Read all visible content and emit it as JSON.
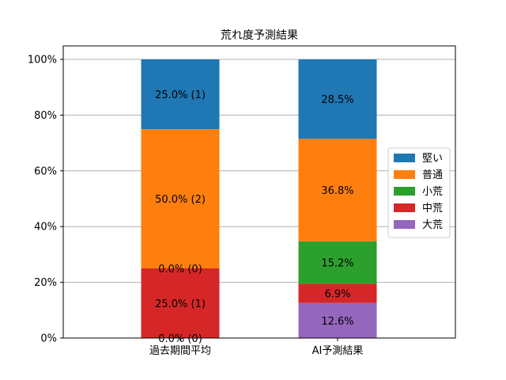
{
  "chart_data": {
    "type": "bar",
    "stacked": true,
    "title": "荒れ度予測結果",
    "xlabel": "",
    "ylabel": "",
    "categories": [
      "過去期間平均",
      "AI予測結果"
    ],
    "ylim": [
      0,
      100
    ],
    "yticks": [
      "0%",
      "20%",
      "40%",
      "60%",
      "80%",
      "100%"
    ],
    "grid": "horizontal",
    "legend_position": "right",
    "series": [
      {
        "name": "大荒",
        "color": "#9467bd",
        "values": [
          0.0,
          12.6
        ],
        "labels": [
          "0.0% (0)",
          "12.6%"
        ]
      },
      {
        "name": "中荒",
        "color": "#d62728",
        "values": [
          25.0,
          6.9
        ],
        "labels": [
          "25.0% (1)",
          "6.9%"
        ]
      },
      {
        "name": "小荒",
        "color": "#2ca02c",
        "values": [
          0.0,
          15.2
        ],
        "labels": [
          "0.0% (0)",
          "15.2%"
        ]
      },
      {
        "name": "普通",
        "color": "#ff7f0e",
        "values": [
          50.0,
          36.8
        ],
        "labels": [
          "50.0% (2)",
          "36.8%"
        ]
      },
      {
        "name": "堅い",
        "color": "#1f77b4",
        "values": [
          25.0,
          28.5
        ],
        "labels": [
          "25.0% (1)",
          "28.5%"
        ]
      }
    ],
    "legend_order": [
      "堅い",
      "普通",
      "小荒",
      "中荒",
      "大荒"
    ]
  }
}
